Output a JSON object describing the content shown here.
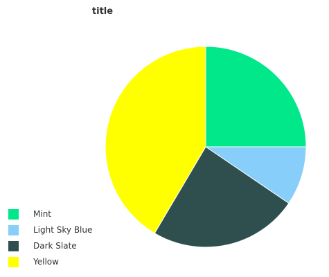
{
  "chart_data": {
    "type": "pie",
    "title": "title",
    "slices": [
      {
        "label": "Mint",
        "value": 25,
        "color": "#00E88A"
      },
      {
        "label": "Light Sky Blue",
        "value": 9.5,
        "color": "#87CEFA"
      },
      {
        "label": "Dark Slate",
        "value": 24,
        "color": "#2F4F4F"
      },
      {
        "label": "Yellow",
        "value": 41.5,
        "color": "#FFFF00"
      }
    ],
    "legend": {
      "position": "bottom-left",
      "items": [
        "Mint",
        "Light Sky Blue",
        "Dark Slate",
        "Yellow"
      ]
    }
  }
}
